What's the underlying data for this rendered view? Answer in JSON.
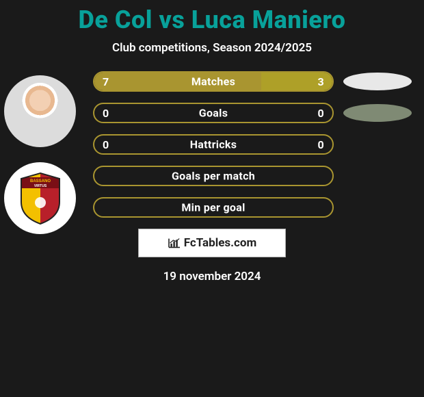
{
  "title": "De Col vs Luca Maniero",
  "subtitle": "Club competitions, Season 2024/2025",
  "date": "19 november 2024",
  "watermark": "FcTables.com",
  "colors": {
    "title": "#08a19a",
    "player1": "#a99530",
    "player2": "#aea028",
    "border_empty": "#a99530",
    "oval_p1": "#e8e8e8",
    "oval_p2": "#7f8a74",
    "background": "#1a1a1a",
    "text": "#ffffff"
  },
  "rows": [
    {
      "label": "Matches",
      "p1_value": "7",
      "p2_value": "3",
      "p1_pct": 70,
      "p2_pct": 30,
      "filled": true,
      "oval": "p1"
    },
    {
      "label": "Goals",
      "p1_value": "0",
      "p2_value": "0",
      "p1_pct": 50,
      "p2_pct": 50,
      "filled": false,
      "oval": "p2"
    },
    {
      "label": "Hattricks",
      "p1_value": "0",
      "p2_value": "0",
      "p1_pct": 50,
      "p2_pct": 50,
      "filled": false,
      "oval": null
    },
    {
      "label": "Goals per match",
      "p1_value": "",
      "p2_value": "",
      "p1_pct": 50,
      "p2_pct": 50,
      "filled": false,
      "oval": null
    },
    {
      "label": "Min per goal",
      "p1_value": "",
      "p2_value": "",
      "p1_pct": 50,
      "p2_pct": 50,
      "filled": false,
      "oval": null
    }
  ],
  "badge": {
    "top_text": "BASSANO",
    "mid_text": "VIRTUS",
    "colors": {
      "yellow": "#f3c000",
      "red": "#b8202a",
      "band": "#7a0f16"
    }
  }
}
